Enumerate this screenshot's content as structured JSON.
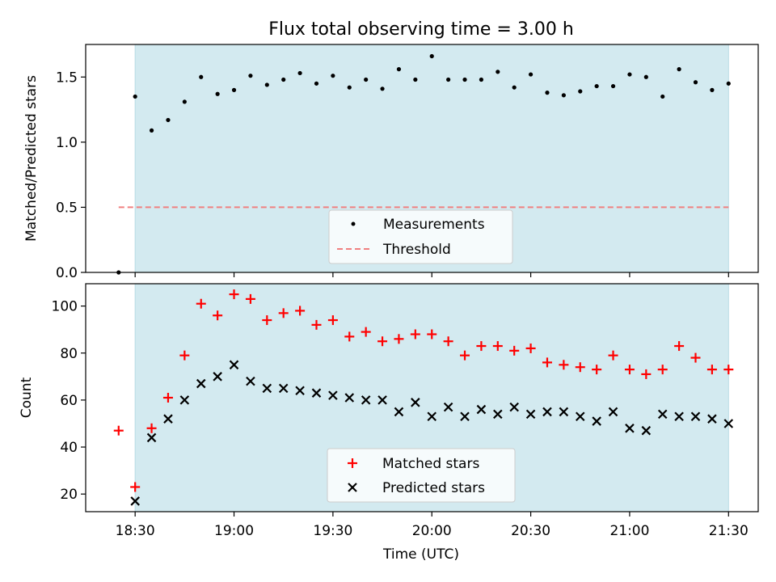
{
  "title": "Flux total observing time = 3.00 h",
  "colors": {
    "shade": "#d3eaf0",
    "measurements": "#000000",
    "threshold": "#f08080",
    "matched": "#ff0000",
    "predicted": "#000000"
  },
  "chart_data": [
    {
      "type": "scatter",
      "panel": "top",
      "ylabel": "Matched/Predicted stars",
      "ylim": [
        0,
        1.75
      ],
      "yticks": [
        0.0,
        0.5,
        1.0,
        1.5
      ],
      "ytick_labels": [
        "0.0",
        "0.5",
        "1.0",
        "1.5"
      ],
      "xlim_minutes_from_1830": [
        -15,
        189
      ],
      "shaded_span": [
        "18:30",
        "21:30"
      ],
      "threshold": {
        "name": "Threshold",
        "y": 0.5,
        "x_range": [
          "18:25",
          "21:30"
        ],
        "style": "dashed"
      },
      "series": [
        {
          "name": "Measurements",
          "marker": "dot",
          "x": [
            "18:25",
            "18:30",
            "18:35",
            "18:40",
            "18:45",
            "18:50",
            "18:55",
            "19:00",
            "19:05",
            "19:10",
            "19:15",
            "19:20",
            "19:25",
            "19:30",
            "19:35",
            "19:40",
            "19:45",
            "19:50",
            "19:55",
            "20:00",
            "20:05",
            "20:10",
            "20:15",
            "20:20",
            "20:25",
            "20:30",
            "20:35",
            "20:40",
            "20:45",
            "20:50",
            "20:55",
            "21:00",
            "21:05",
            "21:10",
            "21:15",
            "21:20",
            "21:25",
            "21:30"
          ],
          "y": [
            0.0,
            1.35,
            1.09,
            1.17,
            1.31,
            1.5,
            1.37,
            1.4,
            1.51,
            1.44,
            1.48,
            1.53,
            1.45,
            1.51,
            1.42,
            1.48,
            1.41,
            1.56,
            1.48,
            1.66,
            1.48,
            1.48,
            1.48,
            1.54,
            1.42,
            1.52,
            1.38,
            1.36,
            1.39,
            1.43,
            1.43,
            1.52,
            1.5,
            1.35,
            1.56,
            1.46,
            1.4,
            1.45
          ]
        }
      ],
      "legend": {
        "placement": "lower center",
        "entries": [
          "Measurements",
          "Threshold"
        ]
      }
    },
    {
      "type": "scatter",
      "panel": "bottom",
      "xlabel": "Time (UTC)",
      "ylabel": "Count",
      "ylim": [
        12.5,
        109.5
      ],
      "yticks": [
        20,
        40,
        60,
        80,
        100
      ],
      "ytick_labels": [
        "20",
        "40",
        "60",
        "80",
        "100"
      ],
      "xticks": [
        "18:30",
        "19:00",
        "19:30",
        "20:00",
        "20:30",
        "21:00",
        "21:30"
      ],
      "shaded_span": [
        "18:30",
        "21:30"
      ],
      "series": [
        {
          "name": "Matched stars",
          "marker": "plus",
          "x": [
            "18:25",
            "18:30",
            "18:35",
            "18:40",
            "18:45",
            "18:50",
            "18:55",
            "19:00",
            "19:05",
            "19:10",
            "19:15",
            "19:20",
            "19:25",
            "19:30",
            "19:35",
            "19:40",
            "19:45",
            "19:50",
            "19:55",
            "20:00",
            "20:05",
            "20:10",
            "20:15",
            "20:20",
            "20:25",
            "20:30",
            "20:35",
            "20:40",
            "20:45",
            "20:50",
            "20:55",
            "21:00",
            "21:05",
            "21:10",
            "21:15",
            "21:20",
            "21:25",
            "21:30"
          ],
          "y": [
            47,
            23,
            48,
            61,
            79,
            101,
            96,
            105,
            103,
            94,
            97,
            98,
            92,
            94,
            87,
            89,
            85,
            86,
            88,
            88,
            85,
            79,
            83,
            83,
            81,
            82,
            76,
            75,
            74,
            73,
            79,
            73,
            71,
            73,
            83,
            78,
            73,
            73
          ]
        },
        {
          "name": "Predicted stars",
          "marker": "x",
          "x": [
            "18:30",
            "18:35",
            "18:40",
            "18:45",
            "18:50",
            "18:55",
            "19:00",
            "19:05",
            "19:10",
            "19:15",
            "19:20",
            "19:25",
            "19:30",
            "19:35",
            "19:40",
            "19:45",
            "19:50",
            "19:55",
            "20:00",
            "20:05",
            "20:10",
            "20:15",
            "20:20",
            "20:25",
            "20:30",
            "20:35",
            "20:40",
            "20:45",
            "20:50",
            "20:55",
            "21:00",
            "21:05",
            "21:10",
            "21:15",
            "21:20",
            "21:25",
            "21:30"
          ],
          "y": [
            17,
            44,
            52,
            60,
            67,
            70,
            75,
            68,
            65,
            65,
            64,
            63,
            62,
            61,
            60,
            60,
            55,
            59,
            53,
            57,
            53,
            56,
            54,
            57,
            54,
            55,
            55,
            53,
            51,
            55,
            48,
            47,
            54,
            53,
            53,
            52,
            50
          ]
        }
      ],
      "legend": {
        "placement": "lower center",
        "entries": [
          "Matched stars",
          "Predicted stars"
        ]
      }
    }
  ]
}
